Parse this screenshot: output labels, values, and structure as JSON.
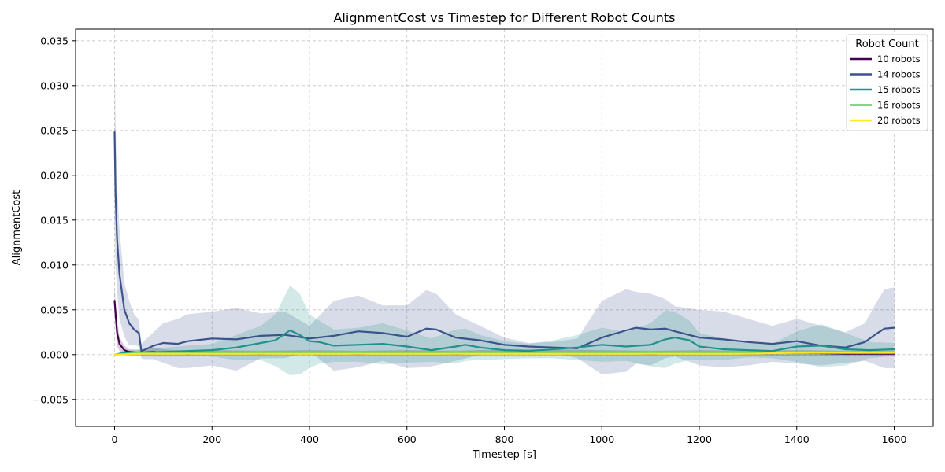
{
  "chart_data": {
    "type": "line",
    "title": "AlignmentCost vs Timestep for Different Robot Counts",
    "xlabel": "Timestep [s]",
    "ylabel": "AlignmentCost",
    "xlim": [
      -80,
      1680
    ],
    "ylim": [
      -0.008,
      0.0363
    ],
    "xticks": [
      0,
      200,
      400,
      600,
      800,
      1000,
      1200,
      1400,
      1600
    ],
    "xtick_labels": [
      "0",
      "200",
      "400",
      "600",
      "800",
      "1000",
      "1200",
      "1400",
      "1600"
    ],
    "yticks": [
      -0.005,
      0,
      0.005,
      0.01,
      0.015,
      0.02,
      0.025,
      0.03,
      0.035
    ],
    "ytick_labels": [
      "−0.005",
      "0.000",
      "0.005",
      "0.010",
      "0.015",
      "0.020",
      "0.025",
      "0.030",
      "0.035"
    ],
    "grid": true,
    "legend": {
      "title": "Robot Count",
      "placement": "top-right"
    },
    "shaded_band": "mean ± std",
    "series": [
      {
        "name": "10 robots",
        "color": "#440154",
        "x": [
          0,
          5,
          10,
          20,
          30,
          50,
          80,
          100,
          150,
          200,
          300,
          400,
          500,
          600,
          700,
          800,
          900,
          1000,
          1100,
          1200,
          1300,
          1400,
          1500,
          1600
        ],
        "mean": [
          0.006,
          0.0025,
          0.0012,
          0.0005,
          0.0003,
          0.0002,
          0.0003,
          0.0002,
          0.0001,
          0.0002,
          0.0001,
          0.0002,
          0.0001,
          0.0002,
          0.0001,
          0.0002,
          0.0002,
          0.0002,
          0.0001,
          0.0002,
          0.0001,
          0.0002,
          0.0001,
          0.0001
        ],
        "upper": [
          0.0075,
          0.004,
          0.002,
          0.001,
          0.0006,
          0.0005,
          0.0008,
          0.0006,
          0.0004,
          0.0005,
          0.0004,
          0.0005,
          0.0004,
          0.0005,
          0.0004,
          0.0006,
          0.0006,
          0.0005,
          0.0004,
          0.0005,
          0.0004,
          0.0005,
          0.0004,
          0.0004
        ],
        "lower": [
          0.0045,
          0.001,
          0.0004,
          0.0,
          -0.0001,
          -0.0001,
          -0.0002,
          -0.0002,
          -0.0002,
          -0.0001,
          -0.0002,
          -0.0001,
          -0.0002,
          -0.0001,
          -0.0002,
          -0.0002,
          -0.0002,
          -0.0001,
          -0.0002,
          -0.0001,
          -0.0002,
          -0.0001,
          -0.0002,
          -0.0002
        ]
      },
      {
        "name": "14 robots",
        "color": "#3b528b",
        "x": [
          0,
          2,
          5,
          10,
          20,
          30,
          40,
          50,
          55,
          60,
          80,
          100,
          130,
          150,
          200,
          250,
          300,
          350,
          400,
          450,
          500,
          550,
          600,
          640,
          660,
          700,
          750,
          800,
          850,
          900,
          950,
          1000,
          1050,
          1070,
          1100,
          1130,
          1150,
          1200,
          1250,
          1300,
          1350,
          1400,
          1450,
          1500,
          1540,
          1560,
          1580,
          1600
        ],
        "mean": [
          0.0248,
          0.018,
          0.013,
          0.009,
          0.005,
          0.0035,
          0.0028,
          0.0024,
          0.0004,
          0.0005,
          0.001,
          0.0013,
          0.0012,
          0.0015,
          0.0018,
          0.0017,
          0.0021,
          0.0022,
          0.0018,
          0.0021,
          0.0026,
          0.0024,
          0.002,
          0.0029,
          0.0028,
          0.0019,
          0.0016,
          0.0011,
          0.0009,
          0.0008,
          0.0007,
          0.0019,
          0.0027,
          0.003,
          0.0028,
          0.0029,
          0.0026,
          0.0019,
          0.0017,
          0.0014,
          0.0012,
          0.0015,
          0.001,
          0.0008,
          0.0014,
          0.0022,
          0.0029,
          0.003
        ],
        "upper": [
          0.0343,
          0.026,
          0.019,
          0.014,
          0.008,
          0.006,
          0.0045,
          0.0039,
          0.0012,
          0.0015,
          0.0025,
          0.0035,
          0.004,
          0.0045,
          0.0048,
          0.0052,
          0.0046,
          0.0048,
          0.0032,
          0.006,
          0.0066,
          0.0055,
          0.0055,
          0.0072,
          0.0068,
          0.0045,
          0.0032,
          0.0019,
          0.0013,
          0.0014,
          0.0018,
          0.006,
          0.0073,
          0.007,
          0.0068,
          0.0062,
          0.0054,
          0.005,
          0.0048,
          0.004,
          0.0032,
          0.004,
          0.0032,
          0.0025,
          0.0035,
          0.0055,
          0.0073,
          0.0075
        ],
        "lower": [
          0.015,
          0.01,
          0.007,
          0.004,
          0.002,
          0.001,
          0.0011,
          0.0009,
          -0.0004,
          -0.0005,
          -0.0005,
          -0.0009,
          -0.0015,
          -0.0015,
          -0.0012,
          -0.0018,
          -0.0004,
          -0.0004,
          0.0004,
          -0.0018,
          -0.0014,
          -0.0007,
          -0.0015,
          -0.0014,
          -0.0012,
          -0.0007,
          0.0,
          0.0003,
          0.0005,
          0.0002,
          -0.0004,
          -0.0022,
          -0.0019,
          -0.001,
          -0.0012,
          -0.0004,
          -0.0002,
          -0.0012,
          -0.0014,
          -0.0012,
          -0.0008,
          -0.001,
          -0.0012,
          -0.0009,
          -0.0007,
          -0.0011,
          -0.0015,
          -0.0015
        ]
      },
      {
        "name": "15 robots",
        "color": "#21918c",
        "x": [
          0,
          20,
          50,
          100,
          150,
          200,
          250,
          300,
          330,
          360,
          380,
          400,
          420,
          450,
          500,
          550,
          600,
          650,
          700,
          720,
          750,
          800,
          850,
          900,
          950,
          1000,
          1050,
          1100,
          1130,
          1150,
          1180,
          1200,
          1250,
          1300,
          1350,
          1400,
          1450,
          1500,
          1550,
          1600
        ],
        "mean": [
          0.0,
          0.0002,
          0.0002,
          0.0003,
          0.0004,
          0.0005,
          0.0008,
          0.0013,
          0.0016,
          0.0027,
          0.0022,
          0.0015,
          0.0014,
          0.001,
          0.0011,
          0.0012,
          0.0009,
          0.0005,
          0.0009,
          0.0011,
          0.0008,
          0.0005,
          0.0004,
          0.0006,
          0.0008,
          0.0011,
          0.0009,
          0.0011,
          0.0017,
          0.0019,
          0.0016,
          0.0009,
          0.0006,
          0.0005,
          0.0004,
          0.0009,
          0.001,
          0.0006,
          0.0005,
          0.0006
        ],
        "upper": [
          0.0,
          0.0005,
          0.0006,
          0.0008,
          0.001,
          0.0012,
          0.0022,
          0.0032,
          0.0045,
          0.0077,
          0.0068,
          0.0045,
          0.0038,
          0.0028,
          0.003,
          0.0035,
          0.0027,
          0.0018,
          0.0028,
          0.0029,
          0.0022,
          0.0015,
          0.0012,
          0.0016,
          0.0022,
          0.003,
          0.0025,
          0.0035,
          0.0049,
          0.0048,
          0.0038,
          0.0024,
          0.0018,
          0.0013,
          0.0012,
          0.0026,
          0.0034,
          0.0024,
          0.0014,
          0.0013
        ],
        "lower": [
          0.0,
          -0.0001,
          -0.0002,
          -0.0002,
          -0.0002,
          -0.0002,
          -0.0006,
          -0.0006,
          -0.0013,
          -0.0023,
          -0.0022,
          -0.0015,
          -0.001,
          -0.0008,
          -0.0008,
          -0.0011,
          -0.0009,
          -0.0008,
          -0.001,
          -0.0007,
          -0.0006,
          -0.0005,
          -0.0004,
          -0.0004,
          -0.0006,
          -0.0008,
          -0.0007,
          -0.0013,
          -0.0015,
          -0.001,
          -0.0006,
          -0.0006,
          -0.0006,
          -0.0003,
          -0.0004,
          -0.0008,
          -0.0014,
          -0.0012,
          -0.0004,
          -0.0001
        ]
      },
      {
        "name": "16 robots",
        "color": "#5ec962",
        "x": [
          0,
          50,
          100,
          200,
          300,
          400,
          500,
          600,
          700,
          800,
          900,
          1000,
          1100,
          1200,
          1300,
          1400,
          1500,
          1600
        ],
        "mean": [
          0.0,
          0.0002,
          0.0002,
          0.0002,
          0.0002,
          0.0002,
          0.0002,
          0.0002,
          0.0002,
          0.0002,
          0.0002,
          0.0002,
          0.0002,
          0.0002,
          0.0002,
          0.0002,
          0.0002,
          0.0002
        ],
        "upper": [
          0.0,
          0.0005,
          0.0005,
          0.0005,
          0.0005,
          0.0005,
          0.0005,
          0.0005,
          0.0005,
          0.0005,
          0.0005,
          0.0005,
          0.0005,
          0.0005,
          0.0005,
          0.0005,
          0.0005,
          0.0005
        ],
        "lower": [
          0.0,
          -0.0001,
          -0.0001,
          -0.0001,
          -0.0001,
          -0.0001,
          -0.0001,
          -0.0001,
          -0.0001,
          -0.0001,
          -0.0001,
          -0.0001,
          -0.0001,
          -0.0001,
          -0.0001,
          -0.0001,
          -0.0001,
          -0.0001
        ]
      },
      {
        "name": "20 robots",
        "color": "#fde725",
        "x": [
          0,
          50,
          100,
          200,
          300,
          400,
          500,
          600,
          700,
          800,
          900,
          1000,
          1100,
          1200,
          1300,
          1400,
          1500,
          1600
        ],
        "mean": [
          0.0,
          0.0001,
          0.0001,
          0.0001,
          0.0001,
          0.0001,
          0.0001,
          0.0001,
          0.0001,
          0.0001,
          0.0001,
          0.0001,
          0.0001,
          0.0001,
          0.0001,
          0.0002,
          0.0002,
          0.0002
        ],
        "upper": [
          0.0,
          0.0003,
          0.0003,
          0.0003,
          0.0003,
          0.0003,
          0.0003,
          0.0003,
          0.0003,
          0.0003,
          0.0003,
          0.0003,
          0.0003,
          0.0003,
          0.0003,
          0.0004,
          0.0004,
          0.0004
        ],
        "lower": [
          0.0,
          -0.0001,
          -0.0001,
          -0.0001,
          -0.0001,
          -0.0001,
          -0.0001,
          -0.0001,
          -0.0001,
          -0.0001,
          -0.0001,
          -0.0001,
          -0.0001,
          -0.0001,
          -0.0001,
          0.0,
          0.0,
          0.0
        ]
      }
    ]
  }
}
